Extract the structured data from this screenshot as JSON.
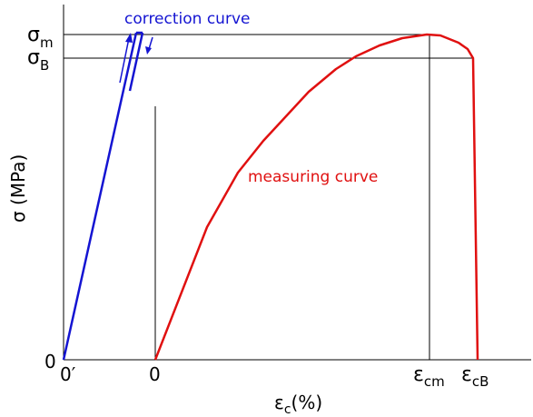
{
  "chart_data": {
    "type": "line",
    "ylabel": "σ (MPa)",
    "xlabel": "εc(%)",
    "y_ticks": [
      {
        "base": "σ",
        "sub": "m"
      },
      {
        "base": "σ",
        "sub": "B"
      },
      {
        "base": "0",
        "sub": ""
      }
    ],
    "x_ticks": [
      {
        "base": "0′",
        "sub": ""
      },
      {
        "base": "0",
        "sub": ""
      },
      {
        "base": "ε",
        "sub": "cm"
      },
      {
        "base": "ε",
        "sub": "cB"
      }
    ],
    "series": [
      {
        "name": "correction curve",
        "color": "#1414d2",
        "note_arrows": true
      },
      {
        "name": "measuring curve",
        "color": "#e01010"
      }
    ]
  },
  "colors": {
    "axis": "#000000",
    "correction": "#1414d2",
    "measuring": "#e01010"
  }
}
